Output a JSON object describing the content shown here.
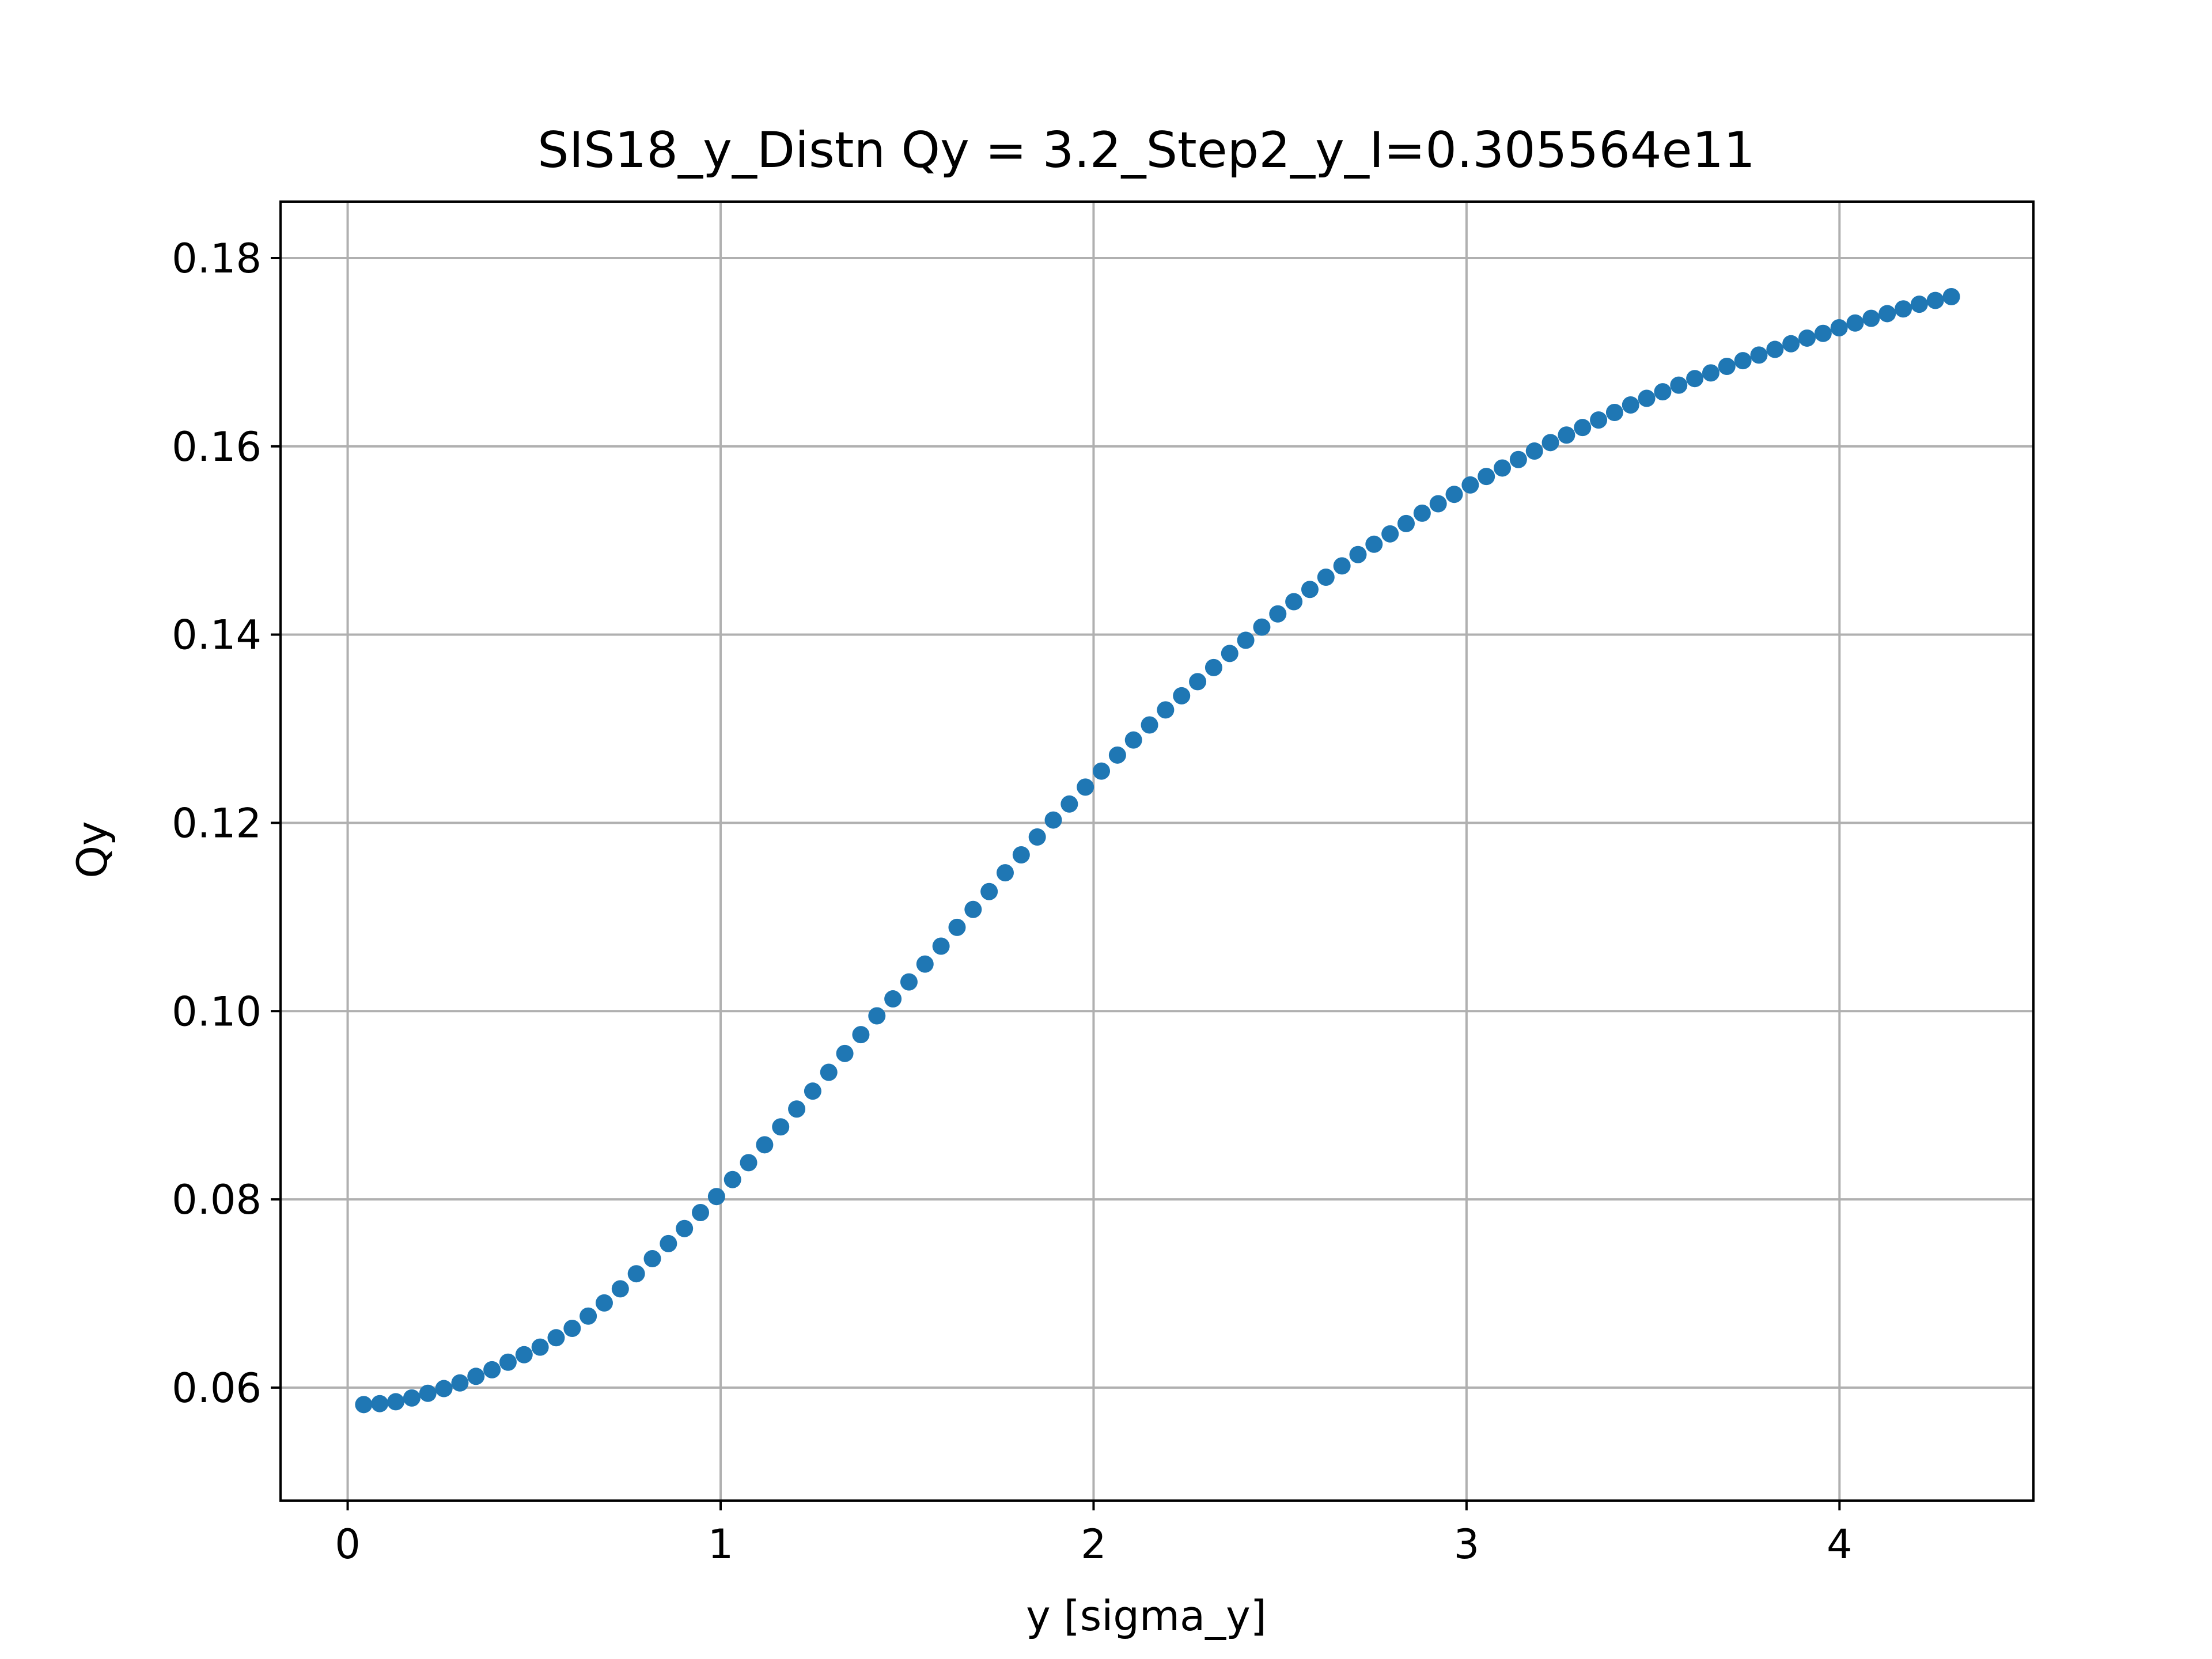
{
  "chart_data": {
    "type": "scatter",
    "title": "SIS18_y_Distn Qy = 3.2_Step2_y_I=0.305564e11",
    "xlabel": "y [sigma_y]",
    "ylabel": "Qy",
    "xlim": [
      -0.18,
      4.52
    ],
    "ylim": [
      0.048,
      0.186
    ],
    "xticks": [
      0,
      1,
      2,
      3,
      4
    ],
    "xtick_labels": [
      "0",
      "1",
      "2",
      "3",
      "4"
    ],
    "yticks": [
      0.06,
      0.08,
      0.1,
      0.12,
      0.14,
      0.16,
      0.18
    ],
    "ytick_labels": [
      "0.06",
      "0.08",
      "0.10",
      "0.12",
      "0.14",
      "0.16",
      "0.18"
    ],
    "grid": true,
    "legend": "none",
    "marker_color": "#1f77b4",
    "series": [
      {
        "points": [
          [
            0.043,
            0.0582
          ],
          [
            0.086,
            0.0583
          ],
          [
            0.129,
            0.0585
          ],
          [
            0.172,
            0.0589
          ],
          [
            0.215,
            0.0594
          ],
          [
            0.258,
            0.0599
          ],
          [
            0.301,
            0.0605
          ],
          [
            0.344,
            0.0612
          ],
          [
            0.387,
            0.0619
          ],
          [
            0.43,
            0.0627
          ],
          [
            0.473,
            0.0635
          ],
          [
            0.516,
            0.0643
          ],
          [
            0.559,
            0.0653
          ],
          [
            0.602,
            0.0663
          ],
          [
            0.645,
            0.0676
          ],
          [
            0.688,
            0.069
          ],
          [
            0.731,
            0.0705
          ],
          [
            0.774,
            0.0721
          ],
          [
            0.817,
            0.0737
          ],
          [
            0.86,
            0.0753
          ],
          [
            0.903,
            0.0769
          ],
          [
            0.946,
            0.0786
          ],
          [
            0.989,
            0.0803
          ],
          [
            1.032,
            0.0821
          ],
          [
            1.075,
            0.0839
          ],
          [
            1.118,
            0.0858
          ],
          [
            1.161,
            0.0877
          ],
          [
            1.204,
            0.0896
          ],
          [
            1.247,
            0.0915
          ],
          [
            1.29,
            0.0935
          ],
          [
            1.333,
            0.0955
          ],
          [
            1.376,
            0.0975
          ],
          [
            1.419,
            0.0995
          ],
          [
            1.462,
            0.1013
          ],
          [
            1.505,
            0.1031
          ],
          [
            1.548,
            0.105
          ],
          [
            1.591,
            0.1069
          ],
          [
            1.634,
            0.1089
          ],
          [
            1.677,
            0.1108
          ],
          [
            1.72,
            0.1127
          ],
          [
            1.763,
            0.1147
          ],
          [
            1.806,
            0.1166
          ],
          [
            1.849,
            0.1185
          ],
          [
            1.892,
            0.1203
          ],
          [
            1.935,
            0.122
          ],
          [
            1.978,
            0.1238
          ],
          [
            2.021,
            0.1255
          ],
          [
            2.064,
            0.1272
          ],
          [
            2.107,
            0.1288
          ],
          [
            2.15,
            0.1304
          ],
          [
            2.193,
            0.132
          ],
          [
            2.236,
            0.1335
          ],
          [
            2.279,
            0.135
          ],
          [
            2.322,
            0.1365
          ],
          [
            2.365,
            0.138
          ],
          [
            2.408,
            0.1394
          ],
          [
            2.451,
            0.1408
          ],
          [
            2.494,
            0.1422
          ],
          [
            2.537,
            0.1435
          ],
          [
            2.58,
            0.1448
          ],
          [
            2.623,
            0.1461
          ],
          [
            2.666,
            0.1473
          ],
          [
            2.709,
            0.1485
          ],
          [
            2.752,
            0.1496
          ],
          [
            2.795,
            0.1507
          ],
          [
            2.838,
            0.1518
          ],
          [
            2.881,
            0.1529
          ],
          [
            2.924,
            0.1539
          ],
          [
            2.967,
            0.1549
          ],
          [
            3.01,
            0.1559
          ],
          [
            3.053,
            0.1568
          ],
          [
            3.096,
            0.1577
          ],
          [
            3.139,
            0.1586
          ],
          [
            3.182,
            0.1595
          ],
          [
            3.225,
            0.1604
          ],
          [
            3.268,
            0.1612
          ],
          [
            3.311,
            0.162
          ],
          [
            3.354,
            0.1628
          ],
          [
            3.397,
            0.1636
          ],
          [
            3.44,
            0.1644
          ],
          [
            3.483,
            0.1651
          ],
          [
            3.526,
            0.1658
          ],
          [
            3.569,
            0.1665
          ],
          [
            3.612,
            0.1672
          ],
          [
            3.655,
            0.1678
          ],
          [
            3.698,
            0.1685
          ],
          [
            3.741,
            0.1691
          ],
          [
            3.784,
            0.1697
          ],
          [
            3.827,
            0.1703
          ],
          [
            3.87,
            0.1709
          ],
          [
            3.913,
            0.1715
          ],
          [
            3.956,
            0.172
          ],
          [
            3.999,
            0.1726
          ],
          [
            4.042,
            0.1731
          ],
          [
            4.085,
            0.1736
          ],
          [
            4.128,
            0.1741
          ],
          [
            4.171,
            0.1746
          ],
          [
            4.214,
            0.1751
          ],
          [
            4.257,
            0.1755
          ],
          [
            4.3,
            0.1759
          ]
        ]
      }
    ]
  }
}
